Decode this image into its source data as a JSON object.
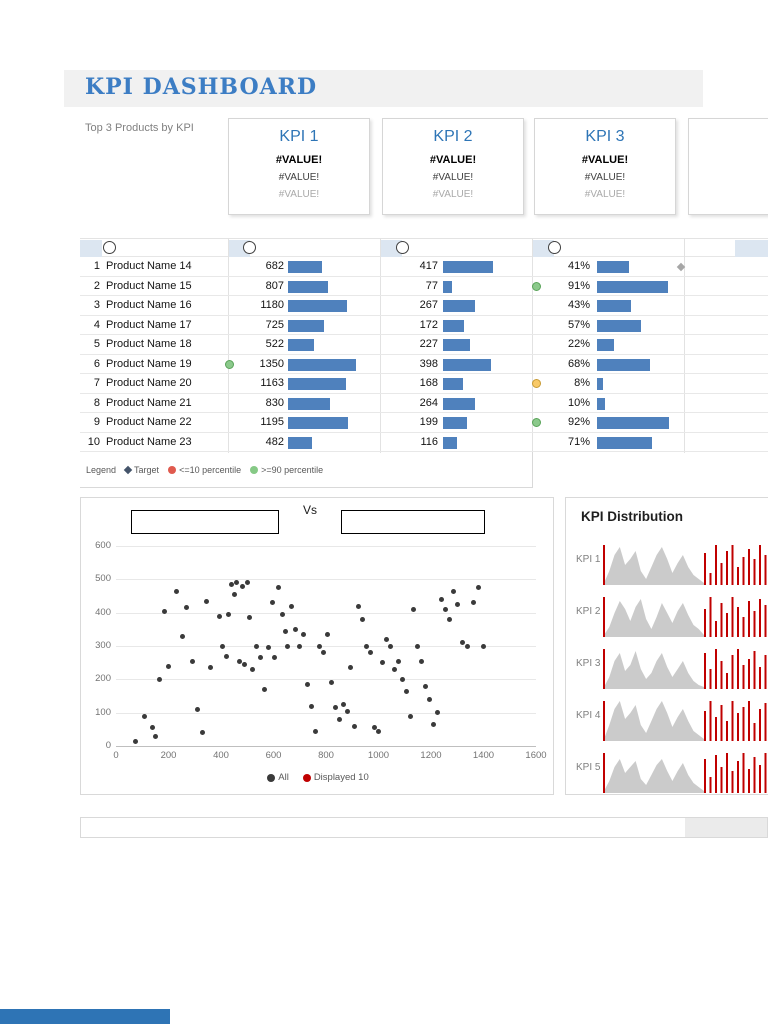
{
  "page": {
    "title": "KPI DASHBOARD",
    "subtitle": "Top 3 Products by KPI"
  },
  "kpi_cards": [
    {
      "title": "KPI 1",
      "value_primary": "#VALUE!",
      "value_secondary": "#VALUE!",
      "value_tertiary": "#VALUE!"
    },
    {
      "title": "KPI 2",
      "value_primary": "#VALUE!",
      "value_secondary": "#VALUE!",
      "value_tertiary": "#VALUE!"
    },
    {
      "title": "KPI 3",
      "value_primary": "#VALUE!",
      "value_secondary": "#VALUE!",
      "value_tertiary": "#VALUE!"
    }
  ],
  "table": {
    "rows": [
      {
        "rank": "1",
        "name": "Product Name 14",
        "v1": 682,
        "v2": 417,
        "p3": 41,
        "p3_label": "41%",
        "target3": true
      },
      {
        "rank": "2",
        "name": "Product Name 15",
        "v1": 807,
        "v2": 77,
        "p3": 91,
        "p3_label": "91%",
        "dot3": "green"
      },
      {
        "rank": "3",
        "name": "Product Name 16",
        "v1": 1180,
        "v2": 267,
        "p3": 43,
        "p3_label": "43%"
      },
      {
        "rank": "4",
        "name": "Product Name 17",
        "v1": 725,
        "v2": 172,
        "p3": 57,
        "p3_label": "57%"
      },
      {
        "rank": "5",
        "name": "Product Name 18",
        "v1": 522,
        "v2": 227,
        "p3": 22,
        "p3_label": "22%"
      },
      {
        "rank": "6",
        "name": "Product Name 19",
        "v1": 1350,
        "v2": 398,
        "p3": 68,
        "p3_label": "68%",
        "dot1": "green"
      },
      {
        "rank": "7",
        "name": "Product Name 20",
        "v1": 1163,
        "v2": 168,
        "p3": 8,
        "p3_label": "8%",
        "dot3": "orange"
      },
      {
        "rank": "8",
        "name": "Product Name 21",
        "v1": 830,
        "v2": 264,
        "p3": 10,
        "p3_label": "10%"
      },
      {
        "rank": "9",
        "name": "Product Name 22",
        "v1": 1195,
        "v2": 199,
        "p3": 92,
        "p3_label": "92%",
        "dot3": "green"
      },
      {
        "rank": "10",
        "name": "Product Name 23",
        "v1": 482,
        "v2": 116,
        "p3": 71,
        "p3_label": "71%"
      }
    ]
  },
  "table_legend": {
    "label": "Legend",
    "items": [
      {
        "marker": "diamond",
        "color": "#44546A",
        "label": "Target"
      },
      {
        "marker": "circle",
        "color": "#E05A4E",
        "label": "<=10 percentile"
      },
      {
        "marker": "circle",
        "color": "#86C986",
        "label": ">=90 percentile"
      }
    ]
  },
  "scatter": {
    "vs_label": "Vs",
    "x_ticks": [
      0,
      200,
      400,
      600,
      800,
      1000,
      1200,
      1400,
      1600
    ],
    "y_ticks": [
      0,
      100,
      200,
      300,
      400,
      500,
      600
    ],
    "x_max": 1600,
    "y_max": 600,
    "legend": [
      {
        "label": "All",
        "color": "#3A3A3A"
      },
      {
        "label": "Displayed 10",
        "color": "#C00000"
      }
    ],
    "points": [
      [
        75,
        15
      ],
      [
        110,
        90
      ],
      [
        140,
        55
      ],
      [
        150,
        30
      ],
      [
        165,
        200
      ],
      [
        185,
        405
      ],
      [
        200,
        240
      ],
      [
        230,
        465
      ],
      [
        255,
        330
      ],
      [
        270,
        415
      ],
      [
        290,
        255
      ],
      [
        310,
        110
      ],
      [
        330,
        40
      ],
      [
        345,
        435
      ],
      [
        360,
        235
      ],
      [
        395,
        390
      ],
      [
        405,
        300
      ],
      [
        420,
        270
      ],
      [
        430,
        395
      ],
      [
        440,
        485
      ],
      [
        450,
        455
      ],
      [
        460,
        490
      ],
      [
        470,
        255
      ],
      [
        480,
        480
      ],
      [
        490,
        245
      ],
      [
        500,
        490
      ],
      [
        510,
        385
      ],
      [
        520,
        230
      ],
      [
        535,
        300
      ],
      [
        550,
        265
      ],
      [
        565,
        170
      ],
      [
        580,
        295
      ],
      [
        595,
        430
      ],
      [
        605,
        265
      ],
      [
        620,
        475
      ],
      [
        635,
        395
      ],
      [
        645,
        345
      ],
      [
        655,
        300
      ],
      [
        670,
        420
      ],
      [
        685,
        350
      ],
      [
        700,
        300
      ],
      [
        715,
        335
      ],
      [
        730,
        185
      ],
      [
        745,
        120
      ],
      [
        760,
        45
      ],
      [
        775,
        300
      ],
      [
        790,
        280
      ],
      [
        805,
        335
      ],
      [
        820,
        190
      ],
      [
        835,
        115
      ],
      [
        850,
        80
      ],
      [
        865,
        125
      ],
      [
        880,
        105
      ],
      [
        895,
        235
      ],
      [
        910,
        60
      ],
      [
        925,
        420
      ],
      [
        940,
        380
      ],
      [
        955,
        300
      ],
      [
        970,
        280
      ],
      [
        985,
        55
      ],
      [
        1000,
        45
      ],
      [
        1015,
        250
      ],
      [
        1030,
        320
      ],
      [
        1045,
        300
      ],
      [
        1060,
        230
      ],
      [
        1075,
        255
      ],
      [
        1090,
        200
      ],
      [
        1105,
        165
      ],
      [
        1120,
        90
      ],
      [
        1135,
        410
      ],
      [
        1150,
        300
      ],
      [
        1165,
        255
      ],
      [
        1180,
        180
      ],
      [
        1195,
        140
      ],
      [
        1210,
        65
      ],
      [
        1225,
        100
      ],
      [
        1240,
        440
      ],
      [
        1255,
        410
      ],
      [
        1270,
        380
      ],
      [
        1285,
        465
      ],
      [
        1300,
        425
      ],
      [
        1320,
        310
      ],
      [
        1340,
        300
      ],
      [
        1360,
        430
      ],
      [
        1380,
        475
      ],
      [
        1400,
        300
      ]
    ]
  },
  "distribution": {
    "title": "KPI Distribution",
    "area_color": "#CBCBCB",
    "bar_color": "#C00000",
    "rows": [
      {
        "label": "KPI 1",
        "area": [
          2,
          14,
          30,
          38,
          20,
          26,
          34,
          14,
          6,
          18,
          30,
          38,
          26,
          12,
          22,
          30,
          18,
          10,
          6,
          2
        ],
        "bars": [
          32,
          12,
          40,
          22,
          34,
          40,
          18,
          28,
          36,
          26,
          40,
          30
        ]
      },
      {
        "label": "KPI 2",
        "area": [
          2,
          10,
          24,
          36,
          28,
          16,
          30,
          38,
          18,
          8,
          20,
          34,
          24,
          14,
          26,
          34,
          22,
          12,
          8,
          2
        ],
        "bars": [
          28,
          40,
          16,
          34,
          24,
          40,
          30,
          20,
          36,
          26,
          38,
          32
        ]
      },
      {
        "label": "KPI 3",
        "area": [
          2,
          12,
          28,
          36,
          18,
          24,
          38,
          20,
          10,
          16,
          28,
          36,
          22,
          12,
          20,
          28,
          16,
          8,
          4,
          2
        ],
        "bars": [
          36,
          20,
          40,
          28,
          16,
          34,
          40,
          24,
          30,
          38,
          22,
          34
        ]
      },
      {
        "label": "KPI 4",
        "area": [
          2,
          16,
          32,
          40,
          22,
          28,
          36,
          16,
          8,
          20,
          32,
          40,
          28,
          14,
          24,
          32,
          20,
          10,
          6,
          2
        ],
        "bars": [
          30,
          40,
          24,
          36,
          20,
          40,
          28,
          34,
          40,
          18,
          32,
          38
        ]
      },
      {
        "label": "KPI 5",
        "area": [
          2,
          12,
          26,
          34,
          20,
          26,
          32,
          14,
          8,
          18,
          28,
          34,
          22,
          12,
          22,
          30,
          18,
          10,
          6,
          2
        ],
        "bars": [
          34,
          16,
          38,
          26,
          40,
          22,
          32,
          40,
          24,
          36,
          28,
          40
        ]
      }
    ]
  },
  "colors": {
    "bar": "#4F81BD",
    "card_title": "#2E75B6",
    "header_title": "#3C7DC4",
    "target_diamond": "#A6A6A6",
    "footer_strip": "#2E74B5",
    "dots": {
      "green": {
        "fill": "#8BC98B",
        "border": "#59A359"
      },
      "orange": {
        "fill": "#F8C968",
        "border": "#C79A33"
      }
    }
  }
}
